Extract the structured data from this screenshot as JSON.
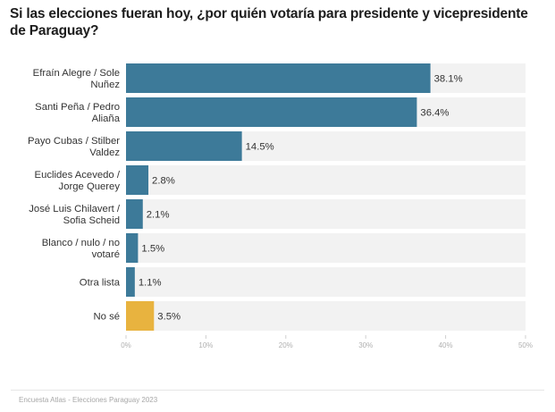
{
  "chart_data": {
    "type": "bar",
    "orientation": "horizontal",
    "title": "Si las elecciones fueran hoy, ¿por quién votaría para presidente y vicepresidente de Paraguay?",
    "xlabel": "",
    "ylabel": "",
    "categories": [
      [
        "Efraín Alegre / Sole",
        "Nuñez"
      ],
      [
        "Santi Peña / Pedro",
        "Aliaña"
      ],
      [
        "Payo Cubas / Stilber",
        "Valdez"
      ],
      [
        "Euclides Acevedo /",
        "Jorge Querey"
      ],
      [
        "José Luis Chilavert /",
        "Sofia Scheid"
      ],
      [
        "Blanco / nulo / no",
        "votaré"
      ],
      [
        "Otra lista"
      ],
      [
        "No sé"
      ]
    ],
    "values": [
      38.1,
      36.4,
      14.5,
      2.8,
      2.1,
      1.5,
      1.1,
      3.5
    ],
    "value_labels": [
      "38.1%",
      "36.4%",
      "14.5%",
      "2.8%",
      "2.1%",
      "1.5%",
      "1.1%",
      "3.5%"
    ],
    "bar_colors": [
      "#3d7a99",
      "#3d7a99",
      "#3d7a99",
      "#3d7a99",
      "#3d7a99",
      "#3d7a99",
      "#3d7a99",
      "#e8b33f"
    ],
    "background_bar_color": "#f2f2f2",
    "xlim": [
      0,
      50
    ],
    "xticks": [
      0,
      10,
      20,
      30,
      40,
      50
    ],
    "xtick_labels": [
      "0%",
      "10%",
      "20%",
      "30%",
      "40%",
      "50%"
    ],
    "grid": false,
    "legend": "none"
  },
  "footer": {
    "source": "Encuesta Atlas - Elecciones Paraguay 2023"
  }
}
